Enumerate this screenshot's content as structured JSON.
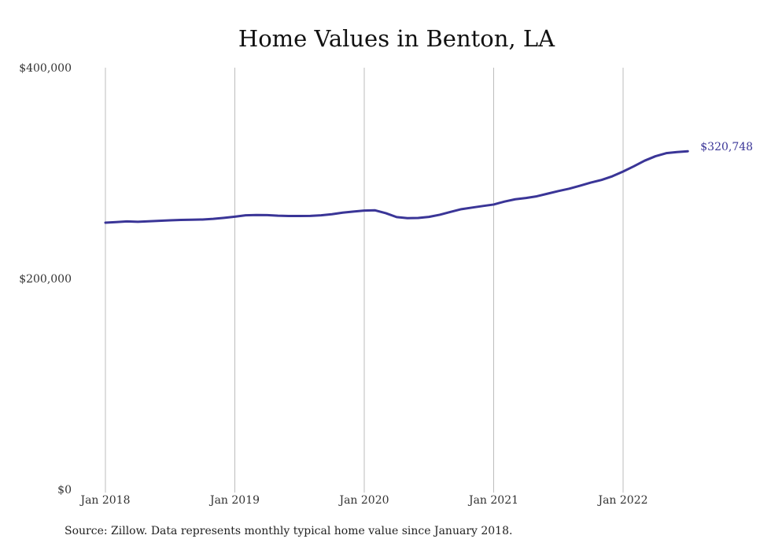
{
  "title": "Home Values in Benton, LA",
  "source": "Source: Zillow. Data represents monthly typical home value since January 2018.",
  "colors": {
    "line": "#3a3597",
    "grid": "#bdbdbd"
  },
  "chart_data": {
    "type": "line",
    "title": "Home Values in Benton, LA",
    "xlabel": "",
    "ylabel": "",
    "x_ticks": [
      "Jan 2018",
      "Jan 2019",
      "Jan 2020",
      "Jan 2021",
      "Jan 2022"
    ],
    "y_ticks": [
      "$0",
      "$200,000",
      "$400,000"
    ],
    "y_tick_values": [
      0,
      200000,
      400000
    ],
    "ylim": [
      0,
      400000
    ],
    "xlim": [
      "2018-01",
      "2022-07"
    ],
    "grid": "vertical lines at each January",
    "end_label": "$320,748",
    "series": [
      {
        "points": [
          [
            "2018-01",
            253000
          ],
          [
            "2018-02",
            253500
          ],
          [
            "2018-03",
            254200
          ],
          [
            "2018-04",
            253800
          ],
          [
            "2018-05",
            254300
          ],
          [
            "2018-06",
            254800
          ],
          [
            "2018-07",
            255200
          ],
          [
            "2018-08",
            255600
          ],
          [
            "2018-09",
            255800
          ],
          [
            "2018-10",
            256000
          ],
          [
            "2018-11",
            256600
          ],
          [
            "2018-12",
            257600
          ],
          [
            "2019-01",
            258700
          ],
          [
            "2019-02",
            260000
          ],
          [
            "2019-03",
            260300
          ],
          [
            "2019-04",
            260200
          ],
          [
            "2019-05",
            259600
          ],
          [
            "2019-06",
            259300
          ],
          [
            "2019-07",
            259300
          ],
          [
            "2019-08",
            259400
          ],
          [
            "2019-09",
            260000
          ],
          [
            "2019-10",
            261000
          ],
          [
            "2019-11",
            262500
          ],
          [
            "2019-12",
            263500
          ],
          [
            "2020-01",
            264500
          ],
          [
            "2020-02",
            264700
          ],
          [
            "2020-03",
            262000
          ],
          [
            "2020-04",
            258300
          ],
          [
            "2020-05",
            257300
          ],
          [
            "2020-06",
            257500
          ],
          [
            "2020-07",
            258500
          ],
          [
            "2020-08",
            260500
          ],
          [
            "2020-09",
            263200
          ],
          [
            "2020-10",
            265800
          ],
          [
            "2020-11",
            267300
          ],
          [
            "2020-12",
            268800
          ],
          [
            "2021-01",
            270200
          ],
          [
            "2021-02",
            273000
          ],
          [
            "2021-03",
            275200
          ],
          [
            "2021-04",
            276400
          ],
          [
            "2021-05",
            278000
          ],
          [
            "2021-06",
            280500
          ],
          [
            "2021-07",
            283000
          ],
          [
            "2021-08",
            285200
          ],
          [
            "2021-09",
            288000
          ],
          [
            "2021-10",
            291000
          ],
          [
            "2021-11",
            293500
          ],
          [
            "2021-12",
            297000
          ],
          [
            "2022-01",
            301500
          ],
          [
            "2022-02",
            306500
          ],
          [
            "2022-03",
            311800
          ],
          [
            "2022-04",
            316000
          ],
          [
            "2022-05",
            318900
          ],
          [
            "2022-06",
            320000
          ],
          [
            "2022-07",
            320748
          ]
        ]
      }
    ]
  }
}
